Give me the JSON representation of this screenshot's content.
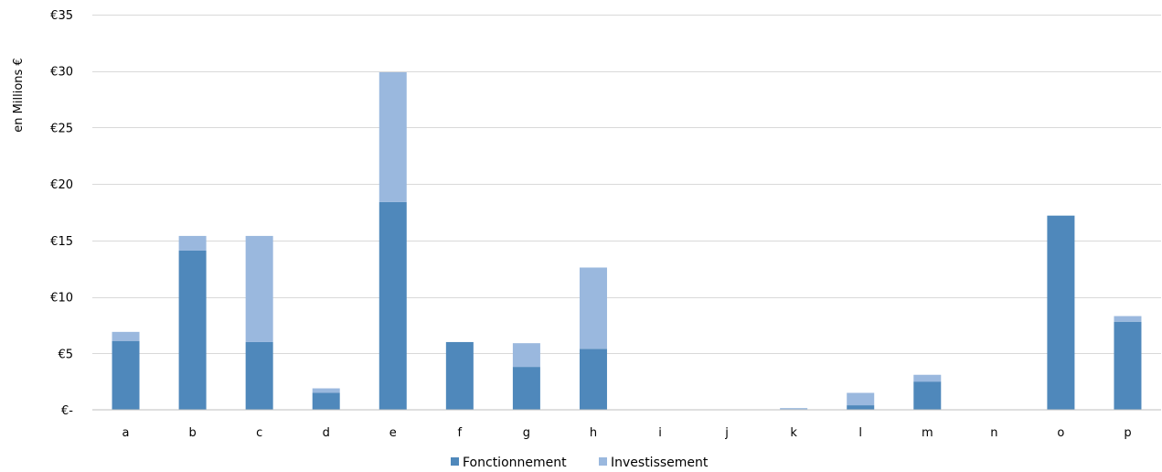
{
  "chart_data": {
    "type": "bar",
    "stacked": true,
    "title": "",
    "xlabel": "",
    "ylabel": "en Millions €",
    "categories": [
      "a",
      "b",
      "c",
      "d",
      "e",
      "f",
      "g",
      "h",
      "i",
      "j",
      "k",
      "l",
      "m",
      "n",
      "o",
      "p"
    ],
    "series": [
      {
        "name": "Fonctionnement",
        "color": "#4f88bb",
        "values": [
          6.1,
          14.1,
          6.0,
          1.5,
          18.4,
          6.0,
          3.8,
          5.4,
          0,
          0,
          0,
          0.4,
          2.5,
          0,
          17.2,
          7.8
        ]
      },
      {
        "name": "Investissement",
        "color": "#9ab8de",
        "values": [
          0.8,
          1.3,
          9.4,
          0.4,
          11.5,
          0,
          2.1,
          7.2,
          0,
          0,
          0.15,
          1.1,
          0.6,
          0,
          0,
          0.5
        ]
      }
    ],
    "ylim": [
      0,
      35
    ],
    "y_ticks": [
      0,
      5,
      10,
      15,
      20,
      25,
      30,
      35
    ],
    "y_tick_labels": [
      "€-",
      "€5",
      "€10",
      "€15",
      "€20",
      "€25",
      "€30",
      "€35"
    ],
    "grid": true,
    "legend_position": "bottom"
  }
}
